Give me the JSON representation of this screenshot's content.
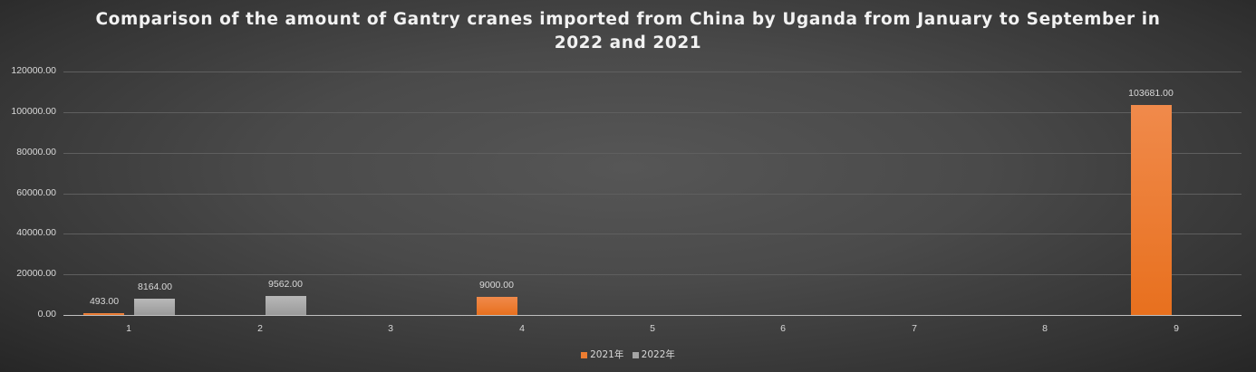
{
  "chart_data": {
    "type": "bar",
    "title": "Comparison of the amount of Gantry cranes imported from China by Uganda from January to September in 2022 and 2021",
    "title_lines": [
      "Comparison of the amount of Gantry cranes imported from China by Uganda from January to September in",
      "2022 and 2021"
    ],
    "xlabel": "",
    "ylabel": "",
    "categories": [
      "1",
      "2",
      "3",
      "4",
      "5",
      "6",
      "7",
      "8",
      "9"
    ],
    "series": [
      {
        "name": "2021年",
        "color": "#ed7d31",
        "values": [
          493,
          0,
          0,
          9000,
          0,
          0,
          0,
          0,
          103681
        ],
        "labels": [
          "493.00",
          "",
          "",
          "9000.00",
          "",
          "",
          "",
          "",
          "103681.00"
        ]
      },
      {
        "name": "2022年",
        "color": "#a5a5a5",
        "values": [
          8164,
          9562,
          0,
          0,
          0,
          0,
          0,
          0,
          0
        ],
        "labels": [
          "8164.00",
          "9562.00",
          "",
          "",
          "",
          "",
          "",
          "",
          ""
        ]
      }
    ],
    "ylim": [
      0,
      120000
    ],
    "yticks": [
      "0.00",
      "20000.00",
      "40000.00",
      "60000.00",
      "80000.00",
      "100000.00",
      "120000.00"
    ],
    "grid": true,
    "legend_position": "bottom"
  }
}
